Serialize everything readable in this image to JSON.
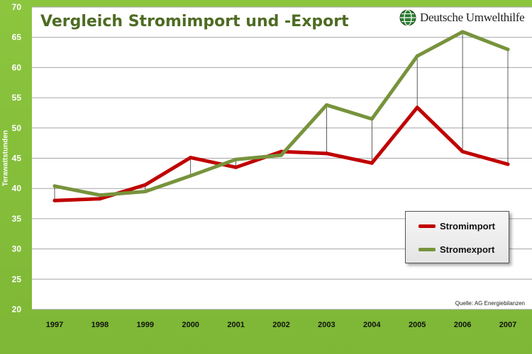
{
  "chart_data": {
    "type": "line",
    "title": "Vergleich Stromimport und -Export",
    "ylabel": "Terawattstunden",
    "xlabel": "",
    "categories": [
      "1997",
      "1998",
      "1999",
      "2000",
      "2001",
      "2002",
      "2003",
      "2004",
      "2005",
      "2006",
      "2007"
    ],
    "yticks": [
      20,
      25,
      30,
      35,
      40,
      45,
      50,
      55,
      60,
      65,
      70
    ],
    "ylim": [
      20,
      70
    ],
    "grid": true,
    "legend_position": "bottom-right",
    "series": [
      {
        "name": "Stromimport",
        "color": "#c00000",
        "values": [
          38.0,
          38.3,
          40.6,
          45.1,
          43.5,
          46.1,
          45.8,
          44.2,
          53.4,
          46.1,
          44.0
        ]
      },
      {
        "name": "Stromexport",
        "color": "#77933c",
        "values": [
          40.4,
          38.9,
          39.5,
          42.1,
          44.8,
          45.5,
          53.8,
          51.5,
          61.9,
          65.9,
          63.0
        ]
      }
    ]
  },
  "logo": {
    "text": "Deutsche Umwelthilfe",
    "icon": "globe-icon"
  },
  "source": "Quelle: AG Energiebilanzen",
  "colors": {
    "background": "#8cc63f",
    "plot": "#ffffff",
    "title": "#4e6b23"
  }
}
